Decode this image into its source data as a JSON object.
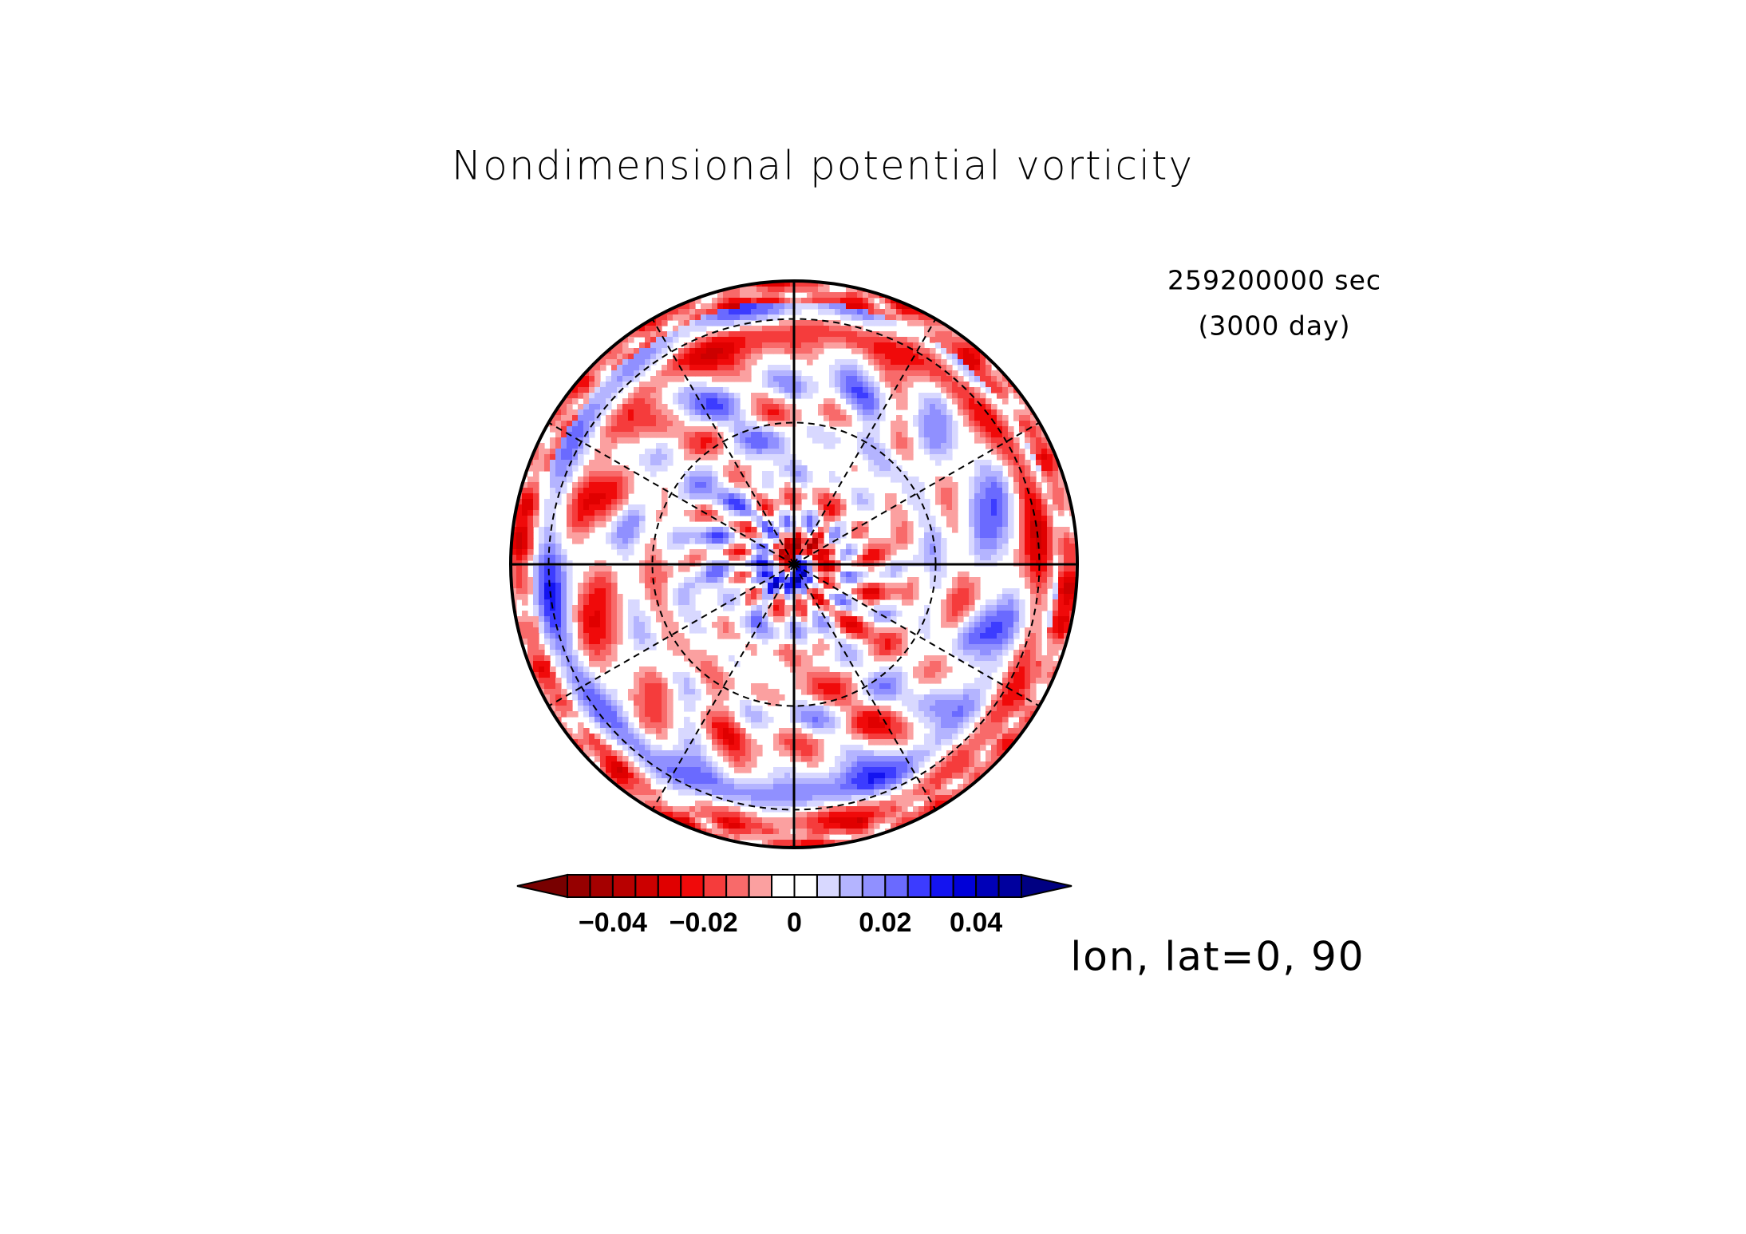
{
  "chart_data": {
    "type": "polar_contour",
    "title": "Nondimensional potential vorticity",
    "annotations": [
      "259200000 sec",
      "(3000 day)"
    ],
    "axis_label": "lon, lat=0, 90",
    "colorbar": {
      "levels": [
        -0.05,
        -0.045,
        -0.04,
        -0.035,
        -0.03,
        -0.025,
        -0.02,
        -0.015,
        -0.01,
        -0.005,
        0,
        0.005,
        0.01,
        0.015,
        0.02,
        0.025,
        0.03,
        0.035,
        0.04,
        0.045,
        0.05
      ],
      "colors": [
        "#780000",
        "#960000",
        "#a50000",
        "#b80000",
        "#cc0000",
        "#e00000",
        "#f00a0a",
        "#f53c3c",
        "#f86a6a",
        "#fba0a0",
        "#ffffff",
        "#ffffff",
        "#d8d8ff",
        "#b4b4ff",
        "#9090ff",
        "#6a6aff",
        "#3c3cff",
        "#1414f0",
        "#0000d8",
        "#0000b8",
        "#00009e",
        "#000082"
      ],
      "ticks": [
        {
          "value": -0.04,
          "label": "−0.04"
        },
        {
          "value": -0.02,
          "label": "−0.02"
        },
        0,
        0.02,
        0.04
      ]
    }
  }
}
